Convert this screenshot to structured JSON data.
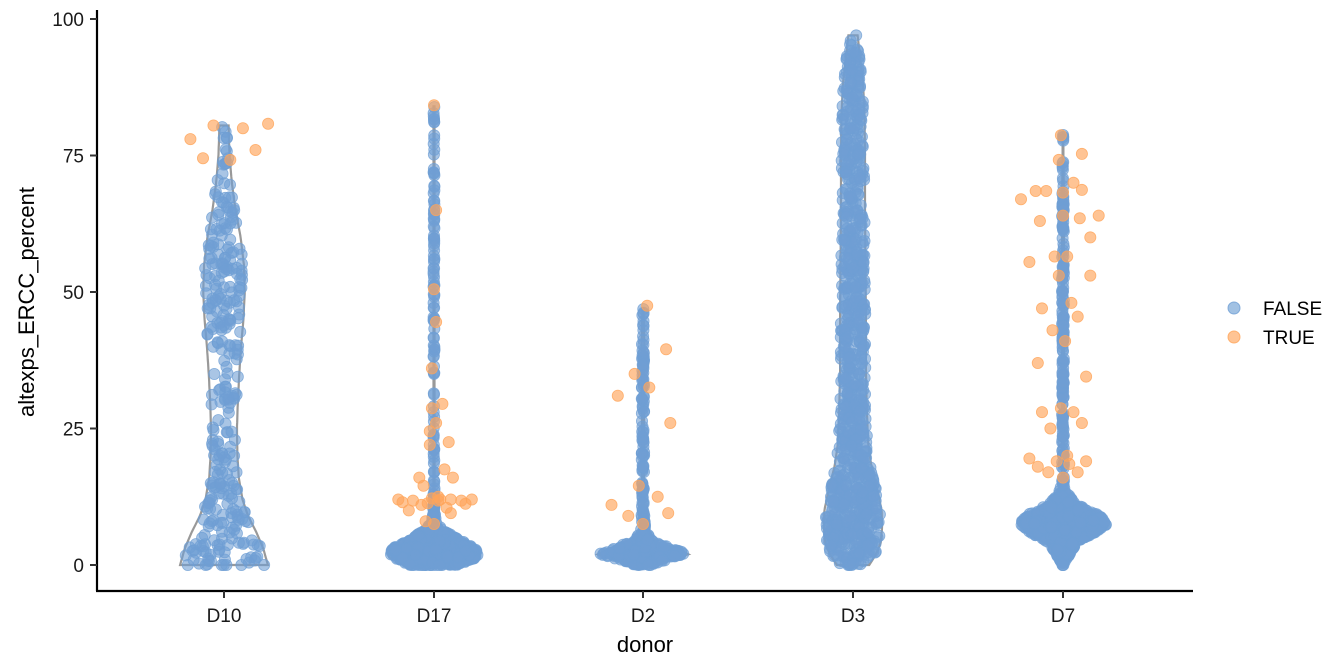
{
  "colors": {
    "FALSE": "#6f9fd4",
    "TRUE": "#ffa55a",
    "violin": "#999999",
    "axis": "#000000"
  },
  "chart_data": {
    "type": "scatter",
    "subtype": "violin-beeswarm",
    "xlabel": "donor",
    "ylabel": "altexps_ERCC_percent",
    "categories": [
      "D10",
      "D17",
      "D2",
      "D3",
      "D7"
    ],
    "ylim": [
      -4,
      101
    ],
    "yticks": [
      0,
      25,
      50,
      75,
      100
    ],
    "grid": false,
    "legend": {
      "position": "right",
      "entries": [
        {
          "label": "FALSE",
          "color_key": "FALSE"
        },
        {
          "label": "TRUE",
          "color_key": "TRUE"
        }
      ]
    },
    "violins": [
      {
        "category": "D10",
        "min": 0,
        "max": 80.5,
        "profile": [
          [
            0,
            0.95
          ],
          [
            3,
            0.85
          ],
          [
            6,
            0.7
          ],
          [
            9,
            0.52
          ],
          [
            12,
            0.4
          ],
          [
            16,
            0.32
          ],
          [
            20,
            0.29
          ],
          [
            25,
            0.28
          ],
          [
            30,
            0.3
          ],
          [
            35,
            0.33
          ],
          [
            40,
            0.37
          ],
          [
            45,
            0.42
          ],
          [
            50,
            0.45
          ],
          [
            55,
            0.43
          ],
          [
            60,
            0.36
          ],
          [
            65,
            0.25
          ],
          [
            70,
            0.17
          ],
          [
            75,
            0.12
          ],
          [
            80,
            0.1
          ],
          [
            80.5,
            0.1
          ]
        ]
      },
      {
        "category": "D17",
        "min": 0,
        "max": 84,
        "profile": [
          [
            0,
            0.55
          ],
          [
            1.5,
            1.0
          ],
          [
            3,
            0.95
          ],
          [
            5,
            0.5
          ],
          [
            6.5,
            0.18
          ],
          [
            8,
            0.05
          ],
          [
            10,
            0.02
          ],
          [
            15,
            0.01
          ],
          [
            84,
            0.01
          ]
        ]
      },
      {
        "category": "D2",
        "min": 0,
        "max": 47,
        "profile": [
          [
            0,
            0.2
          ],
          [
            1,
            0.55
          ],
          [
            2,
            1.0
          ],
          [
            3,
            0.7
          ],
          [
            4.5,
            0.2
          ],
          [
            6,
            0.08
          ],
          [
            8,
            0.04
          ],
          [
            10,
            0.03
          ],
          [
            15,
            0.02
          ],
          [
            20,
            0.03
          ],
          [
            25,
            0.02
          ],
          [
            30,
            0.03
          ],
          [
            35,
            0.02
          ],
          [
            40,
            0.03
          ],
          [
            47,
            0.01
          ]
        ]
      },
      {
        "category": "D3",
        "min": 0,
        "max": 97,
        "profile": [
          [
            0,
            0.35
          ],
          [
            2,
            0.5
          ],
          [
            4,
            0.6
          ],
          [
            7,
            0.63
          ],
          [
            10,
            0.62
          ],
          [
            14,
            0.52
          ],
          [
            18,
            0.4
          ],
          [
            22,
            0.33
          ],
          [
            28,
            0.3
          ],
          [
            35,
            0.28
          ],
          [
            45,
            0.28
          ],
          [
            55,
            0.27
          ],
          [
            65,
            0.26
          ],
          [
            75,
            0.26
          ],
          [
            82,
            0.25
          ],
          [
            88,
            0.22
          ],
          [
            93,
            0.15
          ],
          [
            97,
            0.1
          ]
        ]
      },
      {
        "category": "D7",
        "min": 0,
        "max": 79,
        "profile": [
          [
            0,
            0.02
          ],
          [
            4,
            0.3
          ],
          [
            6,
            0.75
          ],
          [
            7.5,
            1.0
          ],
          [
            9,
            0.85
          ],
          [
            11,
            0.35
          ],
          [
            13,
            0.1
          ],
          [
            15,
            0.03
          ],
          [
            20,
            0.02
          ],
          [
            30,
            0.02
          ],
          [
            40,
            0.02
          ],
          [
            50,
            0.02
          ],
          [
            60,
            0.02
          ],
          [
            70,
            0.015
          ],
          [
            79,
            0.005
          ]
        ]
      }
    ],
    "true_points": [
      {
        "category": "D10",
        "x_offset": -0.16,
        "y": 78
      },
      {
        "category": "D10",
        "x_offset": -0.1,
        "y": 74.5
      },
      {
        "category": "D10",
        "x_offset": -0.05,
        "y": 80.5
      },
      {
        "category": "D10",
        "x_offset": 0.03,
        "y": 74.2
      },
      {
        "category": "D10",
        "x_offset": 0.09,
        "y": 80
      },
      {
        "category": "D10",
        "x_offset": 0.15,
        "y": 76
      },
      {
        "category": "D10",
        "x_offset": 0.21,
        "y": 80.8
      },
      {
        "category": "D17",
        "x_offset": -0.17,
        "y": 12
      },
      {
        "category": "D17",
        "x_offset": -0.15,
        "y": 11.5
      },
      {
        "category": "D17",
        "x_offset": -0.12,
        "y": 10
      },
      {
        "category": "D17",
        "x_offset": -0.1,
        "y": 11.8
      },
      {
        "category": "D17",
        "x_offset": -0.07,
        "y": 16
      },
      {
        "category": "D17",
        "x_offset": -0.05,
        "y": 14.5
      },
      {
        "category": "D17",
        "x_offset": -0.06,
        "y": 11
      },
      {
        "category": "D17",
        "x_offset": -0.04,
        "y": 8
      },
      {
        "category": "D17",
        "x_offset": -0.03,
        "y": 11.3
      },
      {
        "category": "D17",
        "x_offset": -0.02,
        "y": 24.5
      },
      {
        "category": "D17",
        "x_offset": -0.01,
        "y": 12.2
      },
      {
        "category": "D17",
        "x_offset": -0.01,
        "y": 28.7
      },
      {
        "category": "D17",
        "x_offset": -0.02,
        "y": 22
      },
      {
        "category": "D17",
        "x_offset": -0.01,
        "y": 36
      },
      {
        "category": "D17",
        "x_offset": 0.0,
        "y": 84.2
      },
      {
        "category": "D17",
        "x_offset": 0.0,
        "y": 50.5
      },
      {
        "category": "D17",
        "x_offset": 0.01,
        "y": 65
      },
      {
        "category": "D17",
        "x_offset": 0.01,
        "y": 44.5
      },
      {
        "category": "D17",
        "x_offset": 0.01,
        "y": 26
      },
      {
        "category": "D17",
        "x_offset": 0.0,
        "y": 7.5
      },
      {
        "category": "D17",
        "x_offset": 0.02,
        "y": 12.5
      },
      {
        "category": "D17",
        "x_offset": 0.02,
        "y": 11.8
      },
      {
        "category": "D17",
        "x_offset": 0.03,
        "y": 12
      },
      {
        "category": "D17",
        "x_offset": 0.04,
        "y": 29.5
      },
      {
        "category": "D17",
        "x_offset": 0.05,
        "y": 17.5
      },
      {
        "category": "D17",
        "x_offset": 0.06,
        "y": 10.5
      },
      {
        "category": "D17",
        "x_offset": 0.07,
        "y": 22.5
      },
      {
        "category": "D17",
        "x_offset": 0.08,
        "y": 12
      },
      {
        "category": "D17",
        "x_offset": 0.08,
        "y": 9.5
      },
      {
        "category": "D17",
        "x_offset": 0.09,
        "y": 16
      },
      {
        "category": "D17",
        "x_offset": 0.13,
        "y": 11.8
      },
      {
        "category": "D17",
        "x_offset": 0.15,
        "y": 11.2
      },
      {
        "category": "D17",
        "x_offset": 0.18,
        "y": 12
      },
      {
        "category": "D2",
        "x_offset": -0.15,
        "y": 11
      },
      {
        "category": "D2",
        "x_offset": -0.12,
        "y": 31
      },
      {
        "category": "D2",
        "x_offset": -0.07,
        "y": 9
      },
      {
        "category": "D2",
        "x_offset": -0.04,
        "y": 35
      },
      {
        "category": "D2",
        "x_offset": -0.02,
        "y": 14.5
      },
      {
        "category": "D2",
        "x_offset": 0.0,
        "y": 7.5
      },
      {
        "category": "D2",
        "x_offset": 0.02,
        "y": 47.5
      },
      {
        "category": "D2",
        "x_offset": 0.03,
        "y": 32.5
      },
      {
        "category": "D2",
        "x_offset": 0.07,
        "y": 12.5
      },
      {
        "category": "D2",
        "x_offset": 0.11,
        "y": 39.5
      },
      {
        "category": "D2",
        "x_offset": 0.12,
        "y": 9.5
      },
      {
        "category": "D2",
        "x_offset": 0.13,
        "y": 26
      },
      {
        "category": "D7",
        "x_offset": -0.2,
        "y": 67
      },
      {
        "category": "D7",
        "x_offset": -0.16,
        "y": 55.5
      },
      {
        "category": "D7",
        "x_offset": -0.16,
        "y": 19.5
      },
      {
        "category": "D7",
        "x_offset": -0.13,
        "y": 68.5
      },
      {
        "category": "D7",
        "x_offset": -0.12,
        "y": 37
      },
      {
        "category": "D7",
        "x_offset": -0.12,
        "y": 18
      },
      {
        "category": "D7",
        "x_offset": -0.11,
        "y": 63
      },
      {
        "category": "D7",
        "x_offset": -0.1,
        "y": 28
      },
      {
        "category": "D7",
        "x_offset": -0.1,
        "y": 47
      },
      {
        "category": "D7",
        "x_offset": -0.08,
        "y": 68.5
      },
      {
        "category": "D7",
        "x_offset": -0.07,
        "y": 17
      },
      {
        "category": "D7",
        "x_offset": -0.06,
        "y": 25
      },
      {
        "category": "D7",
        "x_offset": -0.05,
        "y": 43
      },
      {
        "category": "D7",
        "x_offset": -0.04,
        "y": 56.5
      },
      {
        "category": "D7",
        "x_offset": -0.03,
        "y": 19
      },
      {
        "category": "D7",
        "x_offset": -0.02,
        "y": 74.2
      },
      {
        "category": "D7",
        "x_offset": -0.02,
        "y": 53
      },
      {
        "category": "D7",
        "x_offset": -0.01,
        "y": 28.7
      },
      {
        "category": "D7",
        "x_offset": -0.01,
        "y": 78.7
      },
      {
        "category": "D7",
        "x_offset": -0.0,
        "y": 64
      },
      {
        "category": "D7",
        "x_offset": 0.0,
        "y": 16
      },
      {
        "category": "D7",
        "x_offset": 0.0,
        "y": 68.2
      },
      {
        "category": "D7",
        "x_offset": 0.01,
        "y": 41
      },
      {
        "category": "D7",
        "x_offset": 0.02,
        "y": 20
      },
      {
        "category": "D7",
        "x_offset": 0.02,
        "y": 56.5
      },
      {
        "category": "D7",
        "x_offset": 0.03,
        "y": 18.5
      },
      {
        "category": "D7",
        "x_offset": 0.04,
        "y": 48
      },
      {
        "category": "D7",
        "x_offset": 0.05,
        "y": 70
      },
      {
        "category": "D7",
        "x_offset": 0.05,
        "y": 28
      },
      {
        "category": "D7",
        "x_offset": 0.07,
        "y": 45.5
      },
      {
        "category": "D7",
        "x_offset": 0.07,
        "y": 17
      },
      {
        "category": "D7",
        "x_offset": 0.08,
        "y": 63.5
      },
      {
        "category": "D7",
        "x_offset": 0.09,
        "y": 68.7
      },
      {
        "category": "D7",
        "x_offset": 0.09,
        "y": 26
      },
      {
        "category": "D7",
        "x_offset": 0.09,
        "y": 75.3
      },
      {
        "category": "D7",
        "x_offset": 0.11,
        "y": 34.5
      },
      {
        "category": "D7",
        "x_offset": 0.11,
        "y": 19
      },
      {
        "category": "D7",
        "x_offset": 0.13,
        "y": 60
      },
      {
        "category": "D7",
        "x_offset": 0.13,
        "y": 53
      },
      {
        "category": "D7",
        "x_offset": 0.17,
        "y": 64
      }
    ]
  }
}
